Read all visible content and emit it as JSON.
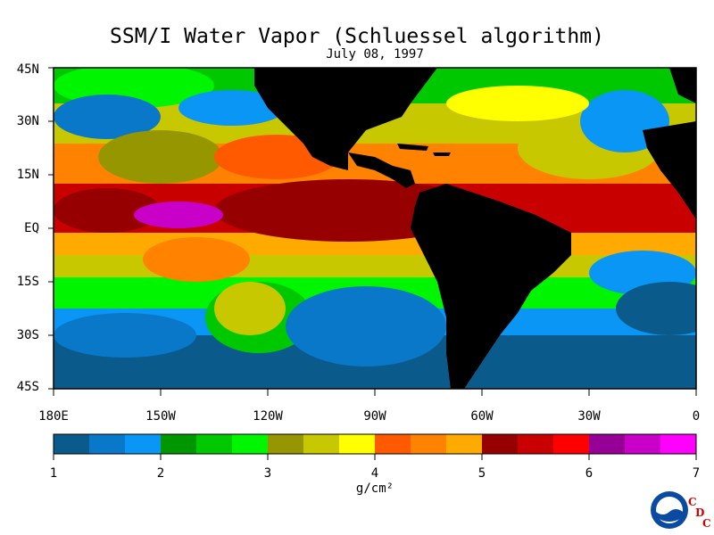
{
  "title": "SSM/I Water Vapor (Schluessel algorithm)",
  "subtitle": "July 08, 1997",
  "lat_labels": [
    "45N",
    "30N",
    "15N",
    "EQ",
    "15S",
    "30S",
    "45S"
  ],
  "lon_labels": [
    "180E",
    "150W",
    "120W",
    "90W",
    "60W",
    "30W",
    "0"
  ],
  "colorbar": {
    "colors": [
      "#0a5a8c",
      "#0a78c8",
      "#0a96f5",
      "#009600",
      "#00c800",
      "#00f500",
      "#969600",
      "#c8c800",
      "#ffff00",
      "#ff5a00",
      "#ff8200",
      "#ffaa00",
      "#960000",
      "#c80000",
      "#ff0000",
      "#960096",
      "#c800c8",
      "#ff00ff"
    ],
    "tick_labels": [
      "1",
      "2",
      "3",
      "4",
      "5",
      "6",
      "7"
    ],
    "units": "g/cm²"
  },
  "logo": {
    "name": "noaa-logo",
    "cdc_letters": [
      "C",
      "D",
      "C"
    ]
  },
  "colors": {
    "land": "#000000",
    "background": "#ffffff"
  }
}
